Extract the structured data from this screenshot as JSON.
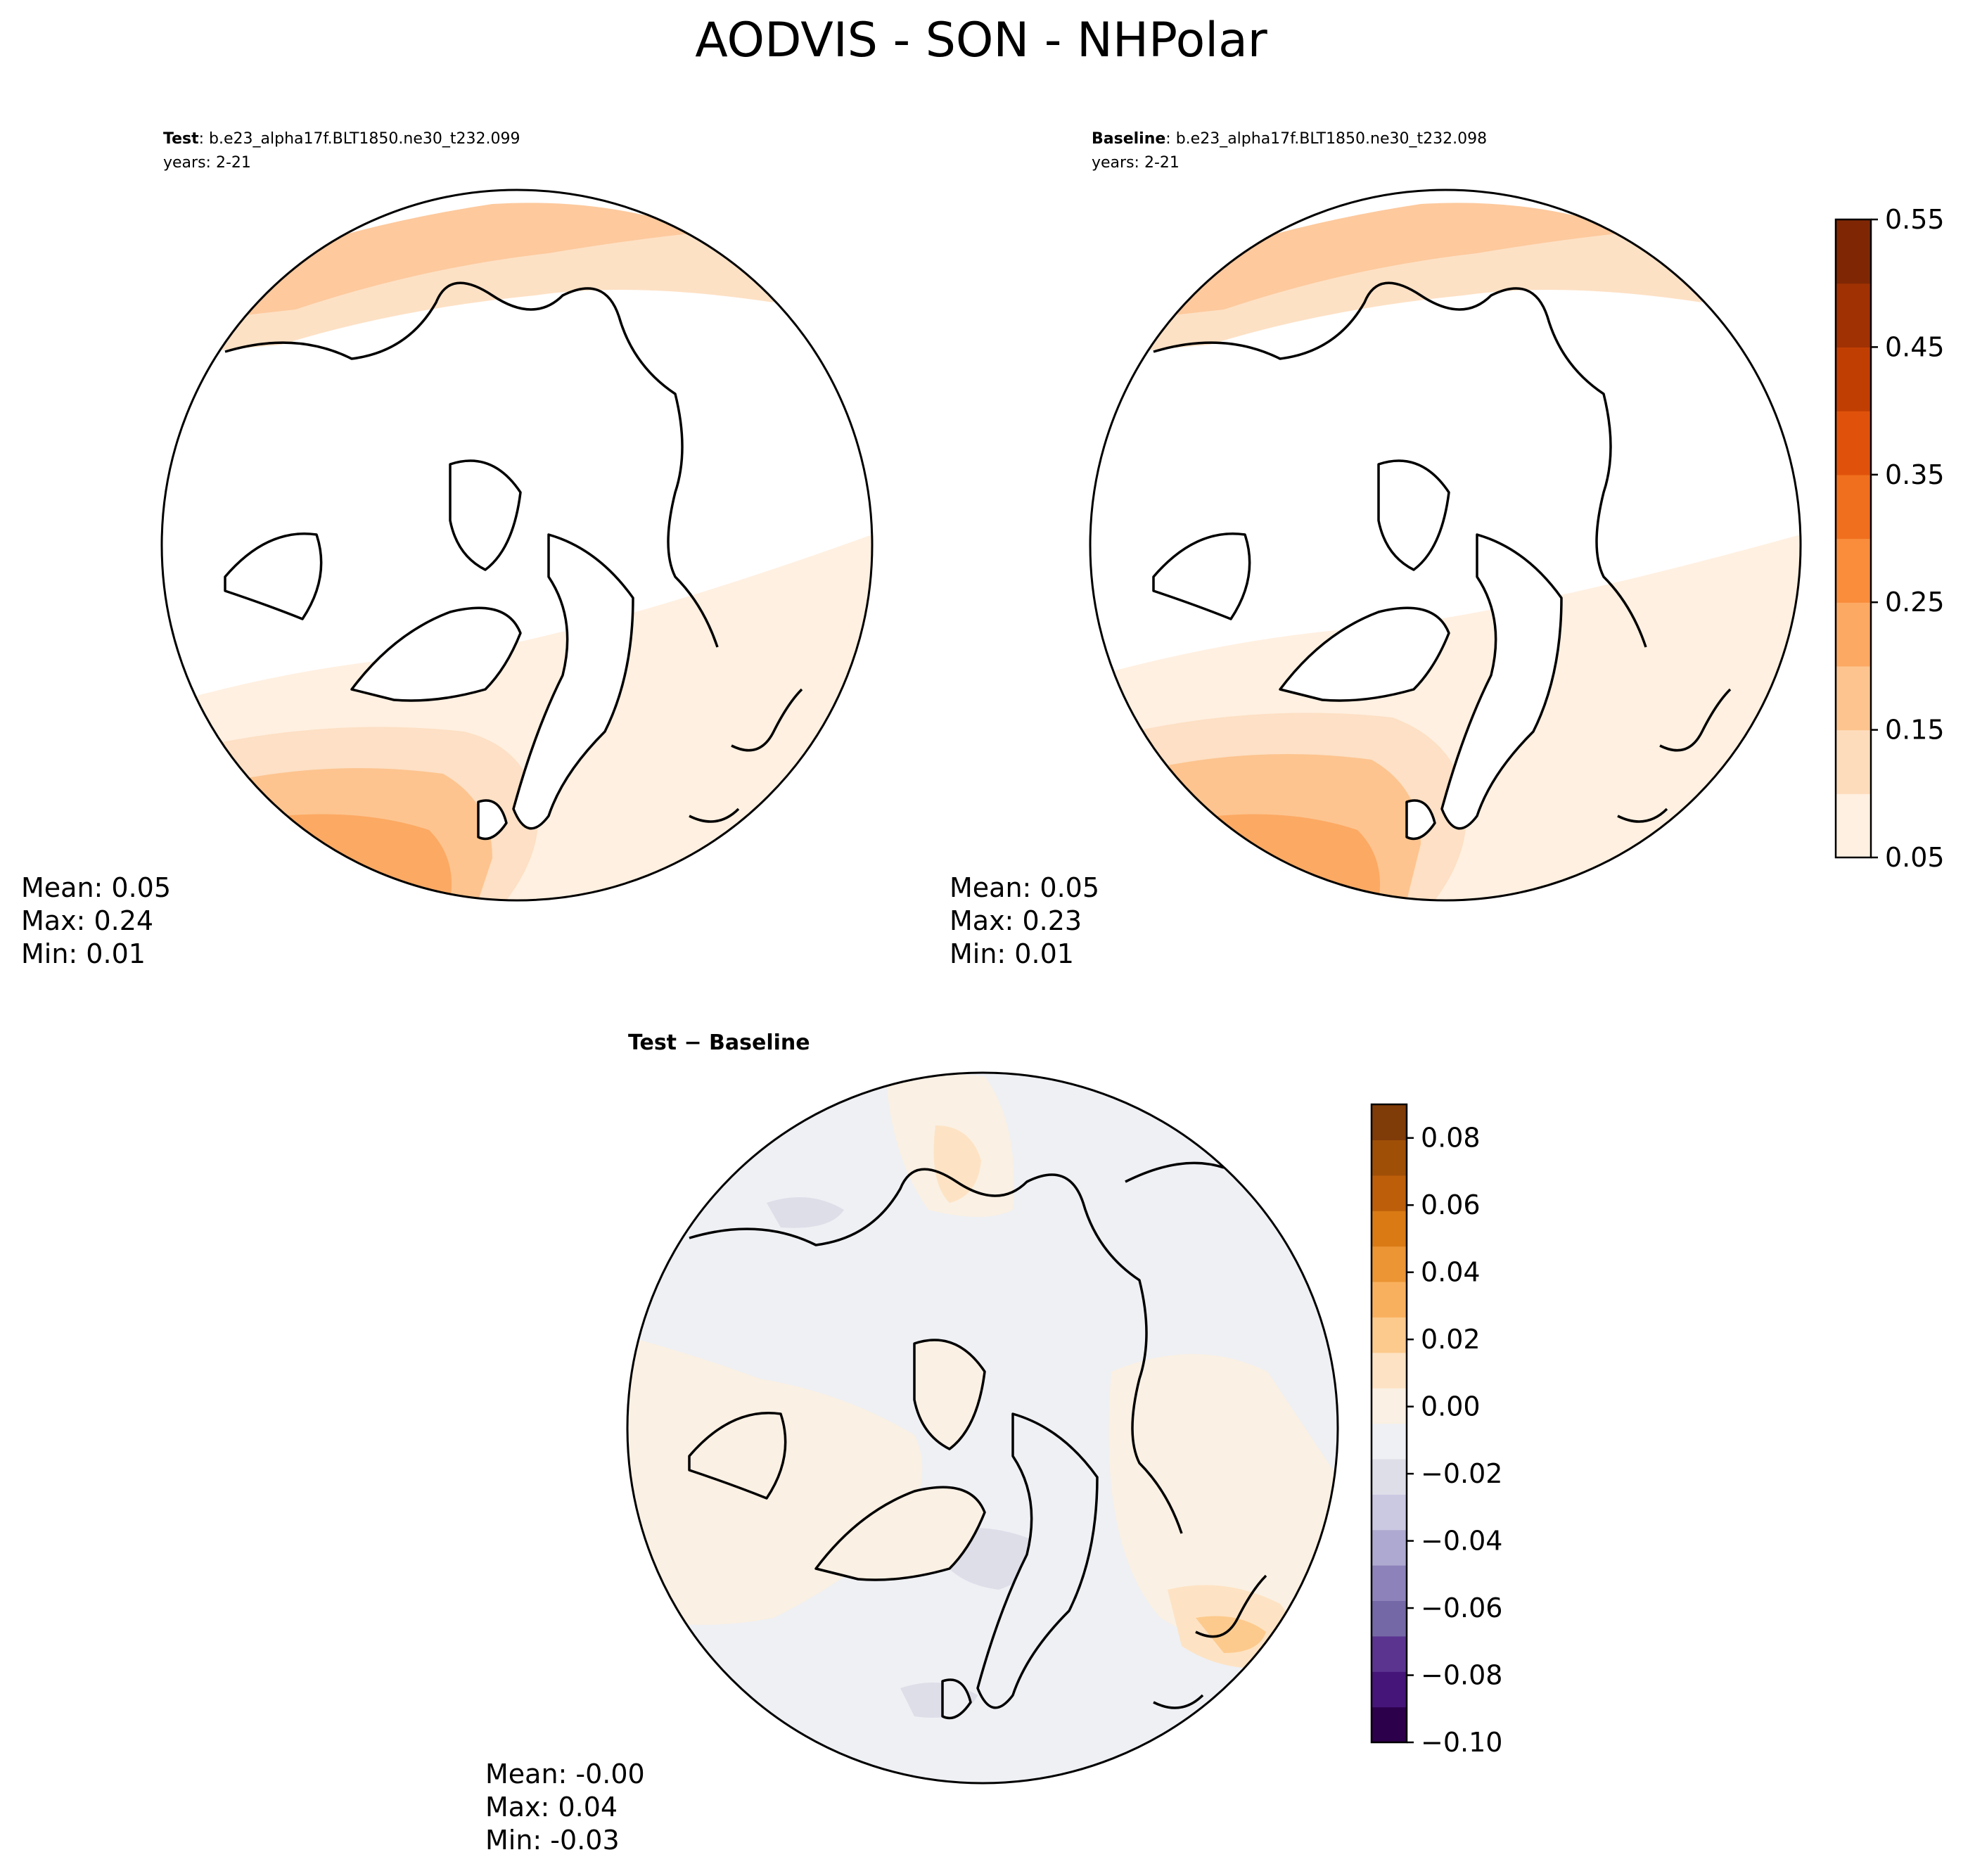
{
  "figure": {
    "title": "AODVIS - SON - NHPolar"
  },
  "panels": [
    {
      "id": "test",
      "case_label": "Test",
      "case_name": ": b.e23_alpha17f.BLT1850.ne30_t232.099",
      "years": "years: 2-21",
      "stats": [
        "Mean:  0.05",
        "Max:  0.24",
        "Min:  0.01"
      ]
    },
    {
      "id": "baseline",
      "case_label": "Baseline",
      "case_name": ": b.e23_alpha17f.BLT1850.ne30_t232.098",
      "years": "years: 2-21",
      "stats": [
        "Mean:  0.05",
        "Max:  0.23",
        "Min:  0.01"
      ]
    },
    {
      "id": "diff",
      "title": "Test − Baseline",
      "stats": [
        "Mean: -0.00",
        "Max:  0.04",
        "Min: -0.03"
      ]
    }
  ],
  "colorbars": {
    "abs": {
      "ticks": [
        "0.05",
        "0.15",
        "0.25",
        "0.35",
        "0.45",
        "0.55"
      ],
      "range": [
        0.05,
        0.55
      ],
      "colors": [
        "#fff0e1",
        "#fddcbc",
        "#fdc48f",
        "#fca963",
        "#f98d3c",
        "#f06f1e",
        "#e0520b",
        "#c13e03",
        "#a03103",
        "#7f2704"
      ]
    },
    "diff": {
      "ticks": [
        "0.08",
        "0.06",
        "0.04",
        "0.02",
        "0.00",
        "−0.02",
        "−0.04",
        "−0.06",
        "−0.08",
        "−0.10"
      ],
      "range": [
        -0.1,
        0.09
      ],
      "colors": [
        "#2d004b",
        "#45157a",
        "#5b3490",
        "#7468a6",
        "#8d83ba",
        "#ada9d0",
        "#cbc9e2",
        "#dedee9",
        "#eef0f4",
        "#faf0e3",
        "#fde3c4",
        "#fdca8d",
        "#f9b05e",
        "#eb9535",
        "#d97a14",
        "#bd5f0a",
        "#a04f07",
        "#7f3b08"
      ]
    }
  },
  "chart_data": [
    {
      "type": "heatmap",
      "title": "Test",
      "subtitle": "b.e23_alpha17f.BLT1850.ne30_t232.099  years: 2-21",
      "projection": "north polar stereographic",
      "colorbar_range": [
        0.05,
        0.55
      ],
      "colorbar_ticks": [
        0.05,
        0.15,
        0.25,
        0.35,
        0.45,
        0.55
      ],
      "stats": {
        "mean": 0.05,
        "max": 0.24,
        "min": 0.01
      }
    },
    {
      "type": "heatmap",
      "title": "Baseline",
      "subtitle": "b.e23_alpha17f.BLT1850.ne30_t232.098  years: 2-21",
      "projection": "north polar stereographic",
      "colorbar_range": [
        0.05,
        0.55
      ],
      "colorbar_ticks": [
        0.05,
        0.15,
        0.25,
        0.35,
        0.45,
        0.55
      ],
      "stats": {
        "mean": 0.05,
        "max": 0.23,
        "min": 0.01
      }
    },
    {
      "type": "heatmap",
      "title": "Test − Baseline",
      "projection": "north polar stereographic",
      "colorbar_range": [
        -0.1,
        0.09
      ],
      "colorbar_ticks": [
        -0.1,
        -0.08,
        -0.06,
        -0.04,
        -0.02,
        0.0,
        0.02,
        0.04,
        0.06,
        0.08
      ],
      "stats": {
        "mean": -0.0,
        "max": 0.04,
        "min": -0.03
      }
    }
  ]
}
